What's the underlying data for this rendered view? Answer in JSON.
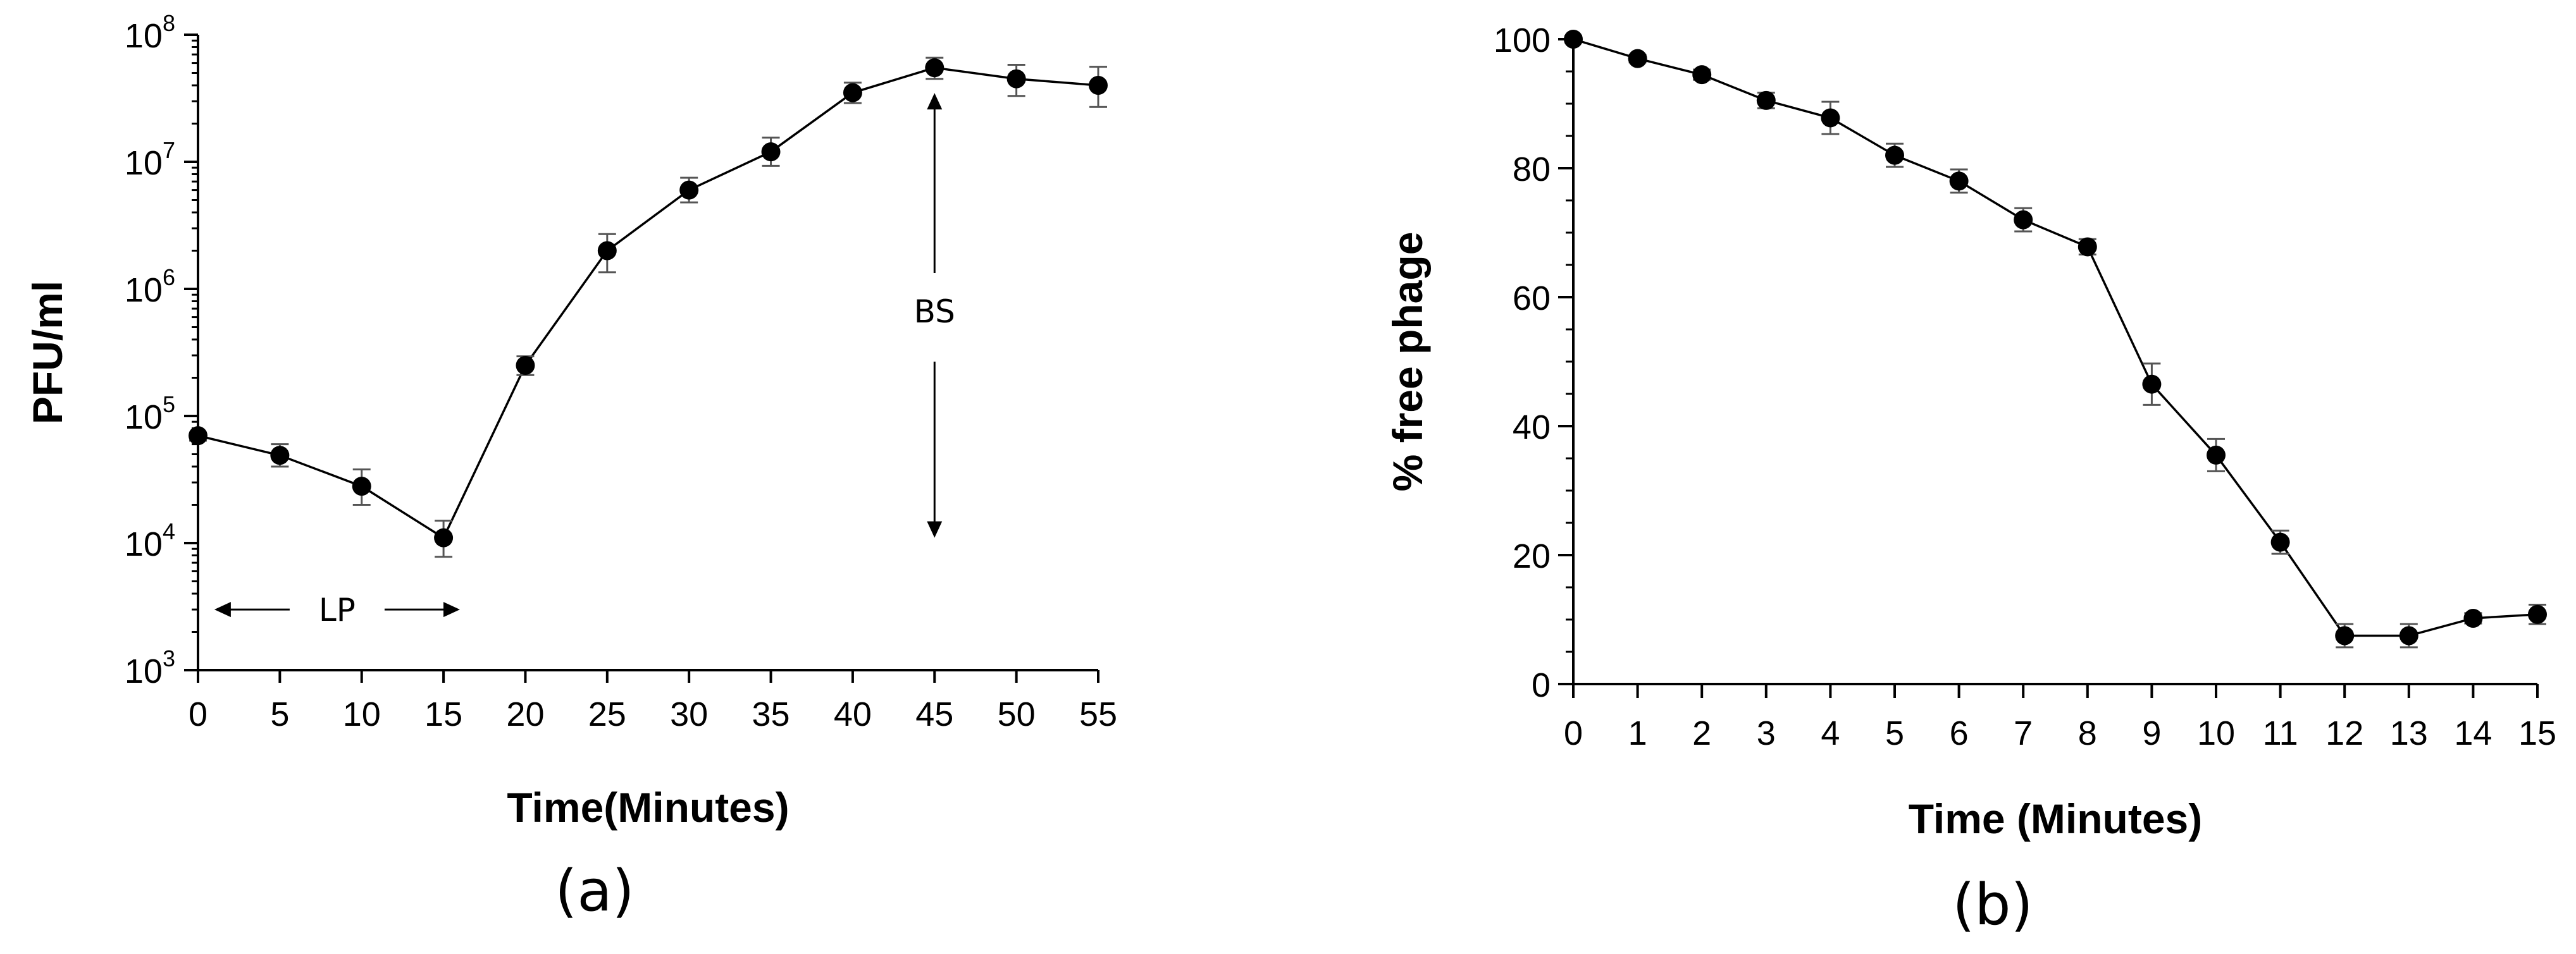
{
  "chart_data": [
    {
      "type": "line",
      "panel_label": "(a)",
      "title": "",
      "xlabel": "Time(Minutes)",
      "ylabel": "PFU/ml",
      "y_scale": "log",
      "xlim": [
        0,
        55
      ],
      "ylim": [
        1000,
        100000000
      ],
      "x_ticks": [
        0,
        5,
        10,
        15,
        20,
        25,
        30,
        35,
        40,
        45,
        50,
        55
      ],
      "y_ticks": [
        {
          "value": 1000,
          "base": "10",
          "exp": "3"
        },
        {
          "value": 10000,
          "base": "10",
          "exp": "4"
        },
        {
          "value": 100000,
          "base": "10",
          "exp": "5"
        },
        {
          "value": 1000000,
          "base": "10",
          "exp": "6"
        },
        {
          "value": 10000000,
          "base": "10",
          "exp": "7"
        },
        {
          "value": 100000000,
          "base": "10",
          "exp": "8"
        }
      ],
      "grid": false,
      "series": [
        {
          "x": [
            0,
            5,
            10,
            15,
            20,
            25,
            30,
            35,
            40,
            45,
            50,
            55
          ],
          "y": [
            70000,
            49000,
            28000,
            11000,
            250000,
            2000000,
            6000000,
            12000000,
            35000000,
            55000000,
            45000000,
            40000000
          ],
          "err_lo": [
            64000,
            40000,
            20000,
            7800,
            210000,
            1350000,
            4800000,
            9300000,
            29000000,
            45000000,
            33000000,
            27000000
          ],
          "err_hi": [
            74000,
            60000,
            38000,
            15000,
            295000,
            2700000,
            7500000,
            15500000,
            42000000,
            66000000,
            58000000,
            56000000
          ]
        }
      ],
      "annotations": [
        {
          "text": "LP",
          "type": "double-arrow-horizontal",
          "x_from": 1,
          "x_to": 16,
          "y": 3000
        },
        {
          "text": "BS",
          "type": "double-arrow-vertical",
          "x": 45,
          "y_from": 11000,
          "y_to": 55000000
        }
      ]
    },
    {
      "type": "line",
      "panel_label": "(b)",
      "title": "",
      "xlabel": "Time (Minutes)",
      "ylabel": "% free phage",
      "y_scale": "linear",
      "xlim": [
        0,
        15
      ],
      "ylim": [
        0,
        100
      ],
      "x_ticks": [
        0,
        1,
        2,
        3,
        4,
        5,
        6,
        7,
        8,
        9,
        10,
        11,
        12,
        13,
        14,
        15
      ],
      "y_ticks": [
        0,
        20,
        40,
        60,
        80,
        100
      ],
      "grid": false,
      "series": [
        {
          "x": [
            0,
            1,
            2,
            3,
            4,
            5,
            6,
            7,
            8,
            9,
            10,
            11,
            12,
            13,
            14,
            15
          ],
          "y": [
            100,
            97,
            94.5,
            90.5,
            87.8,
            82,
            78,
            72,
            67.8,
            46.5,
            35.5,
            22,
            7.5,
            7.5,
            10.2,
            10.8
          ],
          "err": [
            0.5,
            0.6,
            0.8,
            1.2,
            2.5,
            1.8,
            1.8,
            1.8,
            1.2,
            3.2,
            2.5,
            1.8,
            1.8,
            1.8,
            0.8,
            1.5
          ]
        }
      ]
    }
  ]
}
